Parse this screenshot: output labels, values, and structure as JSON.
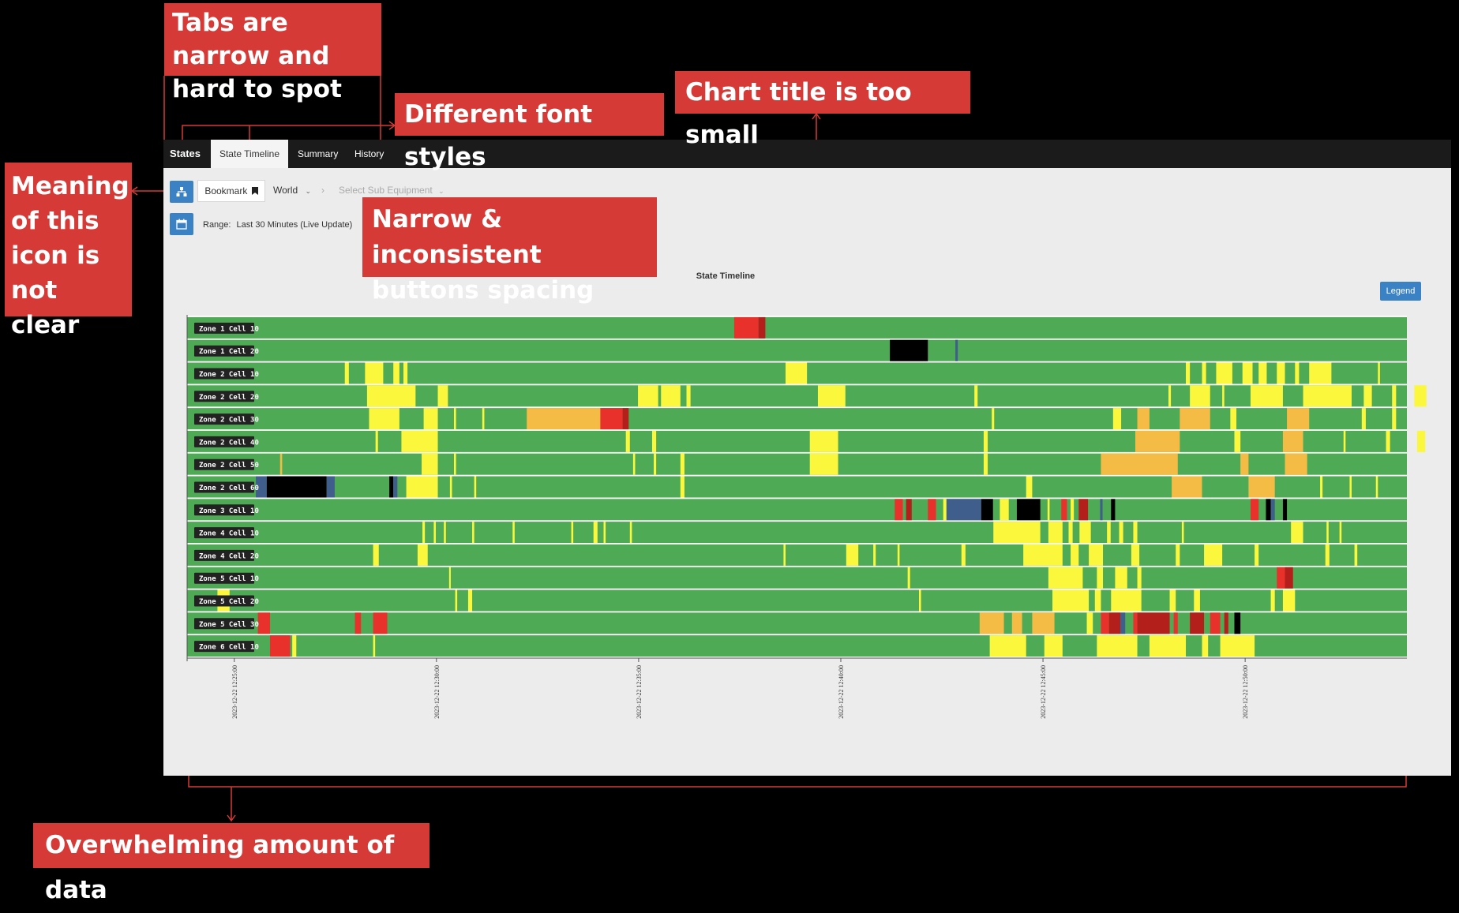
{
  "tabs": {
    "brand": "States",
    "items": [
      "State Timeline",
      "Summary",
      "History"
    ]
  },
  "toolbar": {
    "bookmark_label": "Bookmark",
    "world_label": "World",
    "breadcrumb_separator": "›",
    "sub_equipment_placeholder": "Select Sub Equipment",
    "range_label": "Range:",
    "range_value": "Last 30 Minutes (Live Update)",
    "legend_button": "Legend"
  },
  "icons": {
    "hierarchy": "hierarchy-icon",
    "calendar": "calendar-icon",
    "bookmark": "bookmark-icon",
    "chevron": "chevron-down-icon"
  },
  "colors": {
    "green": "#4faa55",
    "yellow": "#fbf73d",
    "orange": "#f4bc45",
    "red": "#e8312a",
    "darkred": "#b31f1a",
    "black": "#000000",
    "blue": "#3f5e8c",
    "accent": "#3b82c4",
    "annotation": "#d63a37"
  },
  "annotations": {
    "tabs": "Tabs are narrow and hard to spot",
    "fonts": "Different font styles",
    "title": "Chart title is too small",
    "icon": "Meaning of this icon is not clear",
    "spacing": "Narrow & inconsistent buttons spacing",
    "data": "Overwhelming amount of data"
  },
  "chart_data": {
    "type": "timeline",
    "title": "State Timeline",
    "x_start": "2023-12-22 12:23:50",
    "x_end": "2023-12-22 12:54:00",
    "x_ticks": [
      "2023-12-22 12:25:00",
      "2023-12-22 12:30:00",
      "2023-12-22 12:35:00",
      "2023-12-22 12:40:00",
      "2023-12-22 12:45:00",
      "2023-12-22 12:50:00"
    ],
    "rows": [
      {
        "label": "Zone 1 Cell 10",
        "segments": [
          [
            13.53,
            14.13,
            "red"
          ],
          [
            14.13,
            14.3,
            "darkred"
          ]
        ]
      },
      {
        "label": "Zone 1 Cell 20",
        "segments": [
          [
            17.38,
            18.32,
            "black"
          ],
          [
            19,
            19.06,
            "blue"
          ]
        ]
      },
      {
        "label": "Zone 2 Cell 10",
        "segments": [
          [
            3.9,
            4,
            "yellow"
          ],
          [
            4.4,
            4.85,
            "yellow"
          ],
          [
            5.1,
            5.25,
            "yellow"
          ],
          [
            5.35,
            5.45,
            "yellow"
          ],
          [
            14.8,
            15.33,
            "yellow"
          ],
          [
            24.7,
            24.8,
            "yellow"
          ],
          [
            25.1,
            25.2,
            "yellow"
          ],
          [
            25.45,
            25.85,
            "yellow"
          ],
          [
            26.1,
            26.35,
            "yellow"
          ],
          [
            26.5,
            26.7,
            "yellow"
          ],
          [
            26.95,
            27.15,
            "yellow"
          ],
          [
            27.4,
            27.5,
            "yellow"
          ],
          [
            27.75,
            28.3,
            "yellow"
          ],
          [
            29.45,
            29.5,
            "yellow"
          ]
        ]
      },
      {
        "label": "Zone 2 Cell 20",
        "segments": [
          [
            4.45,
            5.65,
            "yellow"
          ],
          [
            6.2,
            6.45,
            "yellow"
          ],
          [
            11.15,
            11.65,
            "yellow"
          ],
          [
            11.72,
            12.2,
            "yellow"
          ],
          [
            12.35,
            12.45,
            "yellow"
          ],
          [
            15.6,
            16.28,
            "yellow"
          ],
          [
            19.47,
            19.55,
            "yellow"
          ],
          [
            24.27,
            24.33,
            "yellow"
          ],
          [
            24.8,
            25.3,
            "yellow"
          ],
          [
            25.6,
            25.65,
            "yellow"
          ],
          [
            26.3,
            27.1,
            "yellow"
          ],
          [
            27.6,
            28.8,
            "yellow"
          ],
          [
            29.1,
            29.3,
            "yellow"
          ],
          [
            29.8,
            29.9,
            "yellow"
          ],
          [
            30.35,
            30.65,
            "yellow"
          ]
        ]
      },
      {
        "label": "Zone 2 Cell 30",
        "segments": [
          [
            4.5,
            5.25,
            "yellow"
          ],
          [
            5.85,
            6.2,
            "yellow"
          ],
          [
            6.6,
            6.65,
            "yellow"
          ],
          [
            7.3,
            7.35,
            "yellow"
          ],
          [
            8.4,
            10.22,
            "orange"
          ],
          [
            10.22,
            10.77,
            "red"
          ],
          [
            10.77,
            10.92,
            "darkred"
          ],
          [
            19.9,
            19.96,
            "yellow"
          ],
          [
            22.9,
            23.1,
            "yellow"
          ],
          [
            23.5,
            23.8,
            "orange"
          ],
          [
            24.55,
            25.3,
            "orange"
          ],
          [
            25.8,
            25.95,
            "yellow"
          ],
          [
            27.2,
            27.75,
            "orange"
          ],
          [
            29.05,
            29.15,
            "yellow"
          ],
          [
            29.8,
            29.9,
            "yellow"
          ]
        ]
      },
      {
        "label": "Zone 2 Cell 40",
        "segments": [
          [
            4.66,
            4.72,
            "yellow"
          ],
          [
            5.3,
            6.2,
            "yellow"
          ],
          [
            10.85,
            10.95,
            "yellow"
          ],
          [
            11.5,
            11.6,
            "yellow"
          ],
          [
            15.4,
            16.1,
            "yellow"
          ],
          [
            19.7,
            19.8,
            "yellow"
          ],
          [
            23.45,
            24.55,
            "orange"
          ],
          [
            25.9,
            26.05,
            "yellow"
          ],
          [
            27.1,
            27.6,
            "orange"
          ],
          [
            28.6,
            28.65,
            "yellow"
          ],
          [
            29.65,
            29.75,
            "yellow"
          ],
          [
            30.42,
            30.62,
            "yellow"
          ]
        ]
      },
      {
        "label": "Zone 2 Cell 50",
        "segments": [
          [
            2.3,
            2.35,
            "orange"
          ],
          [
            5.8,
            6.2,
            "yellow"
          ],
          [
            6.6,
            6.65,
            "yellow"
          ],
          [
            11.03,
            11.08,
            "yellow"
          ],
          [
            11.54,
            11.6,
            "yellow"
          ],
          [
            12.2,
            12.3,
            "yellow"
          ],
          [
            15.4,
            16.1,
            "yellow"
          ],
          [
            19.7,
            19.8,
            "yellow"
          ],
          [
            22.6,
            24.5,
            "orange"
          ],
          [
            26.05,
            26.25,
            "orange"
          ],
          [
            27.15,
            27.7,
            "orange"
          ]
        ]
      },
      {
        "label": "Zone 2 Cell 60",
        "segments": [
          [
            1.7,
            1.97,
            "blue"
          ],
          [
            1.97,
            3.45,
            "black"
          ],
          [
            3.45,
            3.65,
            "blue"
          ],
          [
            5,
            5.1,
            "black"
          ],
          [
            5.1,
            5.2,
            "blue"
          ],
          [
            5.42,
            6.2,
            "yellow"
          ],
          [
            6.5,
            6.55,
            "yellow"
          ],
          [
            7.1,
            7.15,
            "yellow"
          ],
          [
            12.2,
            12.3,
            "yellow"
          ],
          [
            15.4,
            16
          ],
          [
            0,
            0,
            "green"
          ],
          [
            20.75,
            20.9,
            "yellow"
          ],
          [
            24.35,
            25.1,
            "orange"
          ],
          [
            26.25,
            26.9,
            "orange"
          ],
          [
            28.02,
            28.08,
            "yellow"
          ],
          [
            28.75,
            28.8,
            "yellow"
          ],
          [
            29.4,
            29.45,
            "yellow"
          ]
        ]
      },
      {
        "label": "Zone 3 Cell 10",
        "segments": [
          [
            17.5,
            17.7,
            "red"
          ],
          [
            17.78,
            17.92,
            "darkred"
          ],
          [
            18.32,
            18.52,
            "red"
          ],
          [
            18.7,
            18.78,
            "yellow"
          ],
          [
            18.78,
            19.64,
            "blue"
          ],
          [
            19.64,
            19.93,
            "black"
          ],
          [
            20.1,
            20.32,
            "yellow"
          ],
          [
            20.52,
            21.1,
            "black"
          ],
          [
            21.28,
            21.33,
            "yellow"
          ],
          [
            21.62,
            21.76,
            "red"
          ],
          [
            21.85,
            21.93,
            "yellow"
          ],
          [
            22.05,
            22.28,
            "darkred"
          ],
          [
            22.58,
            22.64,
            "blue"
          ],
          [
            22.85,
            22.95,
            "black"
          ],
          [
            26.3,
            26.5,
            "red"
          ],
          [
            26.68,
            26.8,
            "black"
          ],
          [
            26.8,
            26.9,
            "blue"
          ],
          [
            27.1,
            27.2,
            "black"
          ]
        ]
      },
      {
        "label": "Zone 4 Cell 10",
        "segments": [
          [
            5.82,
            5.88,
            "yellow"
          ],
          [
            6.1,
            6.15,
            "yellow"
          ],
          [
            6.35,
            6.4,
            "yellow"
          ],
          [
            7.05,
            7.1,
            "yellow"
          ],
          [
            8.05,
            8.1,
            "yellow"
          ],
          [
            9.5,
            9.55,
            "yellow"
          ],
          [
            10.05,
            10.15,
            "yellow"
          ],
          [
            10.3,
            10.35,
            "yellow"
          ],
          [
            10.95,
            11,
            "yellow"
          ],
          [
            19.94,
            21.1,
            "yellow"
          ],
          [
            21.3,
            21.65,
            "yellow"
          ],
          [
            21.8,
            21.9,
            "yellow"
          ],
          [
            22.07,
            22.35,
            "yellow"
          ],
          [
            22.75,
            22.84,
            "yellow"
          ],
          [
            23.05,
            23.15,
            "yellow"
          ],
          [
            23.4,
            23.5,
            "yellow"
          ],
          [
            24.6,
            24.65,
            "yellow"
          ],
          [
            27.3,
            27.6,
            "yellow"
          ],
          [
            28.18,
            28.23,
            "yellow"
          ],
          [
            28.5,
            28.55,
            "yellow"
          ]
        ]
      },
      {
        "label": "Zone 4 Cell 20",
        "segments": [
          [
            4.6,
            4.74,
            "yellow"
          ],
          [
            5.7,
            5.95,
            "yellow"
          ],
          [
            14.75,
            14.8,
            "yellow"
          ],
          [
            16.3,
            16.6,
            "yellow"
          ],
          [
            16.97,
            17.03,
            "yellow"
          ],
          [
            17.57,
            17.62,
            "yellow"
          ],
          [
            19.15,
            19.25,
            "yellow"
          ],
          [
            20.68,
            21.65,
            "yellow"
          ],
          [
            21.85,
            22.05,
            "yellow"
          ],
          [
            22.3,
            22.65,
            "yellow"
          ],
          [
            23.35,
            23.55,
            "yellow"
          ],
          [
            24.45,
            24.55,
            "yellow"
          ],
          [
            25.15,
            25.6,
            "yellow"
          ],
          [
            26.4,
            26.5,
            "yellow"
          ],
          [
            28.15,
            28.25,
            "yellow"
          ],
          [
            28.87,
            28.94,
            "yellow"
          ]
        ]
      },
      {
        "label": "Zone 5 Cell 10",
        "segments": [
          [
            6.48,
            6.52,
            "yellow"
          ],
          [
            17.82,
            17.88,
            "yellow"
          ],
          [
            21.3,
            22.15,
            "yellow"
          ],
          [
            22.5,
            22.65,
            "yellow"
          ],
          [
            22.95,
            23.25,
            "yellow"
          ],
          [
            23.5,
            23.6,
            "yellow"
          ],
          [
            26.95,
            27.15,
            "red"
          ],
          [
            27.15,
            27.35,
            "darkred"
          ]
        ]
      },
      {
        "label": "Zone 5 Cell 20",
        "segments": [
          [
            0.75,
            1.05,
            "yellow"
          ],
          [
            6.63,
            6.68,
            "yellow"
          ],
          [
            6.95,
            7.05,
            "yellow"
          ],
          [
            18.1,
            18.15,
            "yellow"
          ],
          [
            21.4,
            22.3,
            "yellow"
          ],
          [
            22.45,
            22.6,
            "yellow"
          ],
          [
            22.85,
            23.6,
            "yellow"
          ],
          [
            24.3,
            24.45,
            "yellow"
          ],
          [
            24.9,
            25.05,
            "yellow"
          ],
          [
            26.8,
            26.9,
            "yellow"
          ],
          [
            27.1,
            27.4,
            "yellow"
          ]
        ]
      },
      {
        "label": "Zone 5 Cell 30",
        "segments": [
          [
            1.75,
            2.05,
            "red"
          ],
          [
            4.15,
            4.3,
            "red"
          ],
          [
            4.6,
            4.95,
            "red"
          ],
          [
            19.6,
            20.2,
            "orange"
          ],
          [
            20.4,
            20.65,
            "orange"
          ],
          [
            20.9,
            21.45,
            "orange"
          ],
          [
            22.25,
            22.4,
            "yellow"
          ],
          [
            22.6,
            22.8,
            "red"
          ],
          [
            22.8,
            23.08,
            "darkred"
          ],
          [
            23.08,
            23.2,
            "blue"
          ],
          [
            23.4,
            23.5,
            "red"
          ],
          [
            23.5,
            24.3,
            "darkred"
          ],
          [
            24.4,
            24.5,
            "red"
          ],
          [
            24.8,
            25.15,
            "darkred"
          ],
          [
            25.3,
            25.55,
            "red"
          ],
          [
            25.65,
            25.75,
            "darkred"
          ],
          [
            25.9,
            26.05,
            "black"
          ]
        ]
      },
      {
        "label": "Zone 6 Cell 10",
        "segments": [
          [
            2.05,
            2.55,
            "red"
          ],
          [
            2.6,
            2.7,
            "yellow"
          ],
          [
            4.6,
            4.65,
            "yellow"
          ],
          [
            19.85,
            20.75,
            "yellow"
          ],
          [
            21.2,
            21.65,
            "yellow"
          ],
          [
            22.5,
            23.5,
            "yellow"
          ],
          [
            23.8,
            24.7,
            "yellow"
          ],
          [
            25.1,
            25.25,
            "yellow"
          ],
          [
            25.55,
            26.4,
            "yellow"
          ]
        ]
      }
    ]
  }
}
